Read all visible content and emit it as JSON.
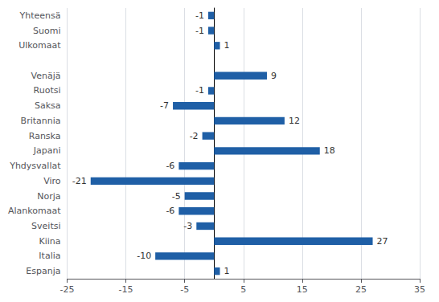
{
  "chart_data": {
    "type": "bar",
    "orientation": "horizontal",
    "categories": [
      "Yhteensä",
      "Suomi",
      "Ulkomaat",
      null,
      "Venäjä",
      "Ruotsi",
      "Saksa",
      "Britannia",
      "Ranska",
      "Japani",
      "Yhdysvallat",
      "Viro",
      "Norja",
      "Alankomaat",
      "Sveitsi",
      "Kiina",
      "Italia",
      "Espanja"
    ],
    "values": [
      -1,
      -1,
      1,
      null,
      9,
      -1,
      -7,
      12,
      -2,
      18,
      -6,
      -21,
      -5,
      -6,
      -3,
      27,
      -10,
      1
    ],
    "color": "#1F5FA6",
    "xlim": [
      -25,
      35
    ],
    "xticks": [
      -25,
      -15,
      -5,
      5,
      15,
      25,
      35
    ],
    "grid": true,
    "data_labels": true
  }
}
